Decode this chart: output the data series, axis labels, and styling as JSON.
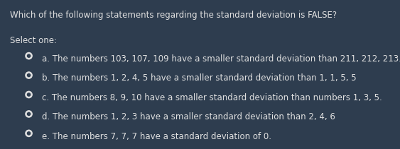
{
  "background_color": "#2e3d4f",
  "title": "Which of the following statements regarding the standard deviation is FALSE?",
  "select_label": "Select one:",
  "options": [
    "a. The numbers 103, 107, 109 have a smaller standard deviation than 211, 212, 213.",
    "b. The numbers 1, 2, 4, 5 have a smaller standard deviation than 1, 1, 5, 5",
    "c. The numbers 8, 9, 10 have a smaller standard deviation than numbers 1, 3, 5.",
    "d. The numbers 1, 2, 3 have a smaller standard deviation than 2, 4, 6",
    "e. The numbers 7, 7, 7 have a standard deviation of 0."
  ],
  "text_color": "#e0e0e0",
  "bullet_outer_color": "#e0e0e0",
  "bullet_inner_color": "#2e3d4f",
  "title_fontsize": 8.5,
  "label_fontsize": 8.5,
  "option_fontsize": 8.5
}
